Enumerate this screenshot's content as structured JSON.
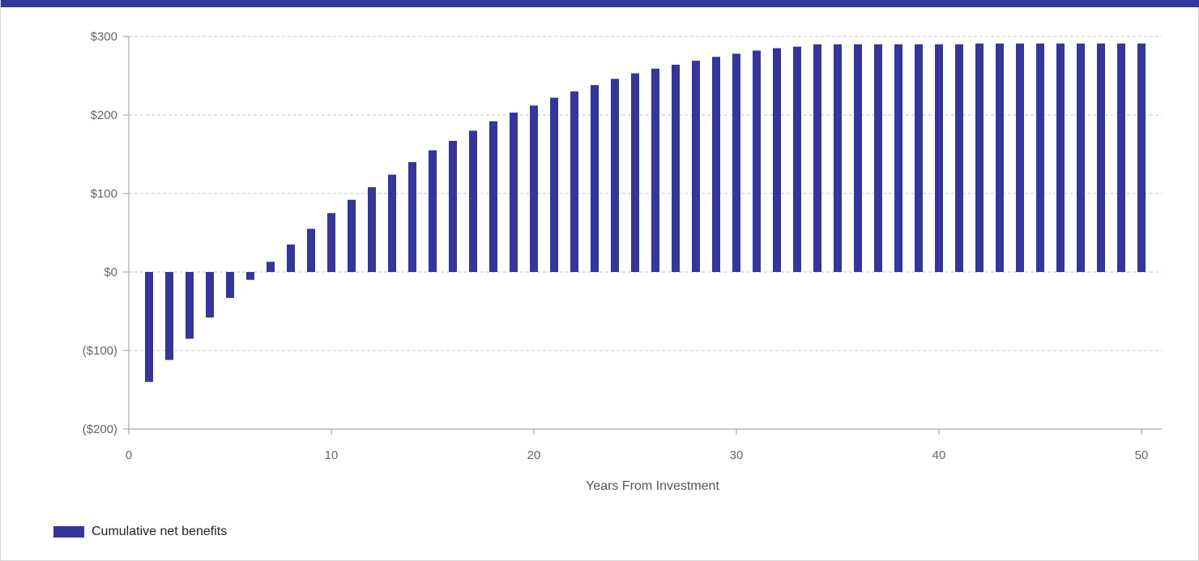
{
  "colors": {
    "accent": "#35359a",
    "grid": "#c4c4c4",
    "axis": "#9a9a9a",
    "tick_text": "#666666"
  },
  "legend": {
    "label": "Cumulative net benefits",
    "swatch_color": "#35359a"
  },
  "chart_data": {
    "type": "bar",
    "title": "",
    "xlabel": "Years From Investment",
    "ylabel": "",
    "xlim": [
      0,
      51
    ],
    "ylim": [
      -200,
      300
    ],
    "x_ticks": [
      0,
      10,
      20,
      30,
      40,
      50
    ],
    "x_tick_labels": [
      "0",
      "10",
      "20",
      "30",
      "40",
      "50"
    ],
    "y_ticks": [
      300,
      200,
      100,
      0,
      -100,
      -200
    ],
    "y_tick_labels": [
      "$300",
      "$200",
      "$100",
      "$0",
      "($100)",
      "($200)"
    ],
    "grid": "horizontal dashed",
    "legend_position": "bottom-left",
    "series": [
      {
        "name": "Cumulative net benefits",
        "color": "#35359a",
        "x": [
          1,
          2,
          3,
          4,
          5,
          6,
          7,
          8,
          9,
          10,
          11,
          12,
          13,
          14,
          15,
          16,
          17,
          18,
          19,
          20,
          21,
          22,
          23,
          24,
          25,
          26,
          27,
          28,
          29,
          30,
          31,
          32,
          33,
          34,
          35,
          36,
          37,
          38,
          39,
          40,
          41,
          42,
          43,
          44,
          45,
          46,
          47,
          48,
          49,
          50
        ],
        "values": [
          -140,
          -112,
          -85,
          -58,
          -33,
          -10,
          13,
          35,
          55,
          75,
          92,
          108,
          124,
          140,
          155,
          167,
          180,
          192,
          203,
          212,
          222,
          230,
          238,
          246,
          253,
          259,
          264,
          269,
          274,
          278,
          282,
          285,
          287,
          290,
          290,
          290,
          290,
          290,
          290,
          290,
          290,
          291,
          291,
          291,
          291,
          291,
          291,
          291,
          291,
          291
        ]
      }
    ]
  }
}
